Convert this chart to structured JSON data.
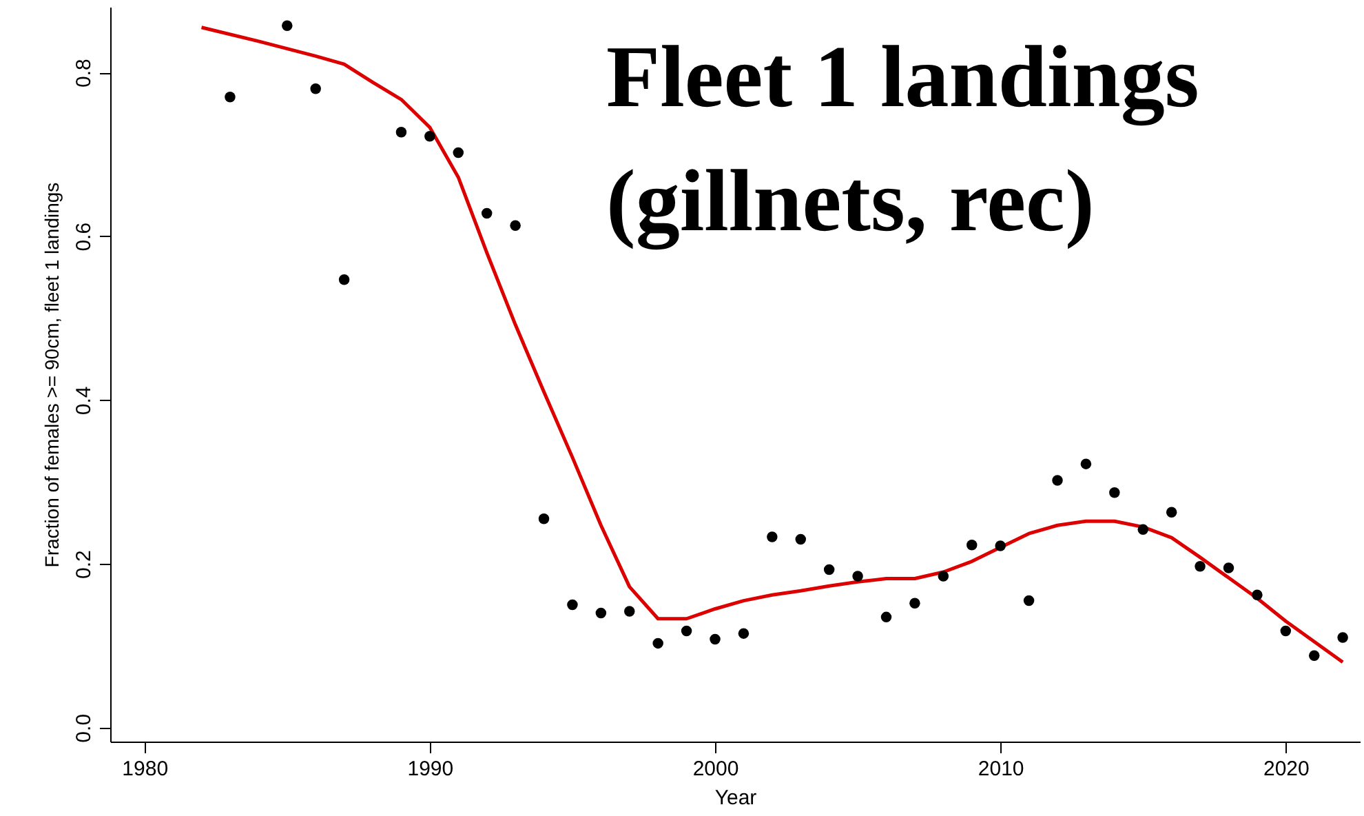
{
  "chart_data": {
    "type": "scatter",
    "xlabel": "Year",
    "ylabel": "Fraction of females >= 90cm, fleet 1 landings",
    "annotations": [
      "Fleet 1 landings",
      "(gillnets, rec)"
    ],
    "xlim": [
      1978.8,
      2022.6
    ],
    "xticks": [
      1980,
      1990,
      2000,
      2010,
      2020
    ],
    "ylim": [
      -0.017,
      0.88
    ],
    "yticks": [
      {
        "value": 0,
        "label": "0.0"
      },
      0.2,
      0.4,
      0.6,
      0.8
    ],
    "grid": false,
    "marker": "circle",
    "series": [
      {
        "color": "#000000",
        "x": [
          1983,
          1985,
          1986,
          1987,
          1989,
          1990,
          1991,
          1992,
          1993,
          1994,
          1995,
          1996,
          1997,
          1998,
          1999,
          2000,
          2001,
          2002,
          2003,
          2004,
          2005,
          2006,
          2007,
          2008,
          2009,
          2010,
          2011,
          2012,
          2013,
          2014,
          2015,
          2016,
          2017,
          2018,
          2019,
          2020,
          2021,
          2022
        ],
        "values": [
          0.77,
          0.857,
          0.78,
          0.547,
          0.727,
          0.722,
          0.702,
          0.628,
          0.613,
          0.255,
          0.15,
          0.14,
          0.142,
          0.103,
          0.118,
          0.108,
          0.115,
          0.233,
          0.23,
          0.193,
          0.185,
          0.135,
          0.152,
          0.185,
          0.223,
          0.222,
          0.155,
          0.302,
          0.322,
          0.287,
          0.242,
          0.263,
          0.197,
          0.195,
          0.162,
          0.118,
          0.088,
          0.11
        ]
      },
      {
        "type": "line",
        "color": "#dd0000",
        "marker": "none",
        "line_style": "solid",
        "x": [
          1982,
          1984,
          1986,
          1987,
          1988,
          1989,
          1990,
          1991,
          1992,
          1993,
          1994,
          1995,
          1996,
          1997,
          1998,
          1999,
          2000,
          2001,
          2002,
          2003,
          2004,
          2005,
          2006,
          2007,
          2008,
          2009,
          2010,
          2011,
          2012,
          2013,
          2014,
          2015,
          2016,
          2017,
          2018,
          2019,
          2020,
          2021,
          2022
        ],
        "values": [
          0.855,
          0.838,
          0.82,
          0.81,
          0.788,
          0.767,
          0.733,
          0.672,
          0.58,
          0.492,
          0.41,
          0.33,
          0.247,
          0.172,
          0.133,
          0.133,
          0.145,
          0.155,
          0.162,
          0.167,
          0.173,
          0.178,
          0.182,
          0.182,
          0.19,
          0.203,
          0.22,
          0.237,
          0.247,
          0.252,
          0.252,
          0.245,
          0.232,
          0.208,
          0.183,
          0.158,
          0.13,
          0.105,
          0.08
        ]
      }
    ]
  }
}
